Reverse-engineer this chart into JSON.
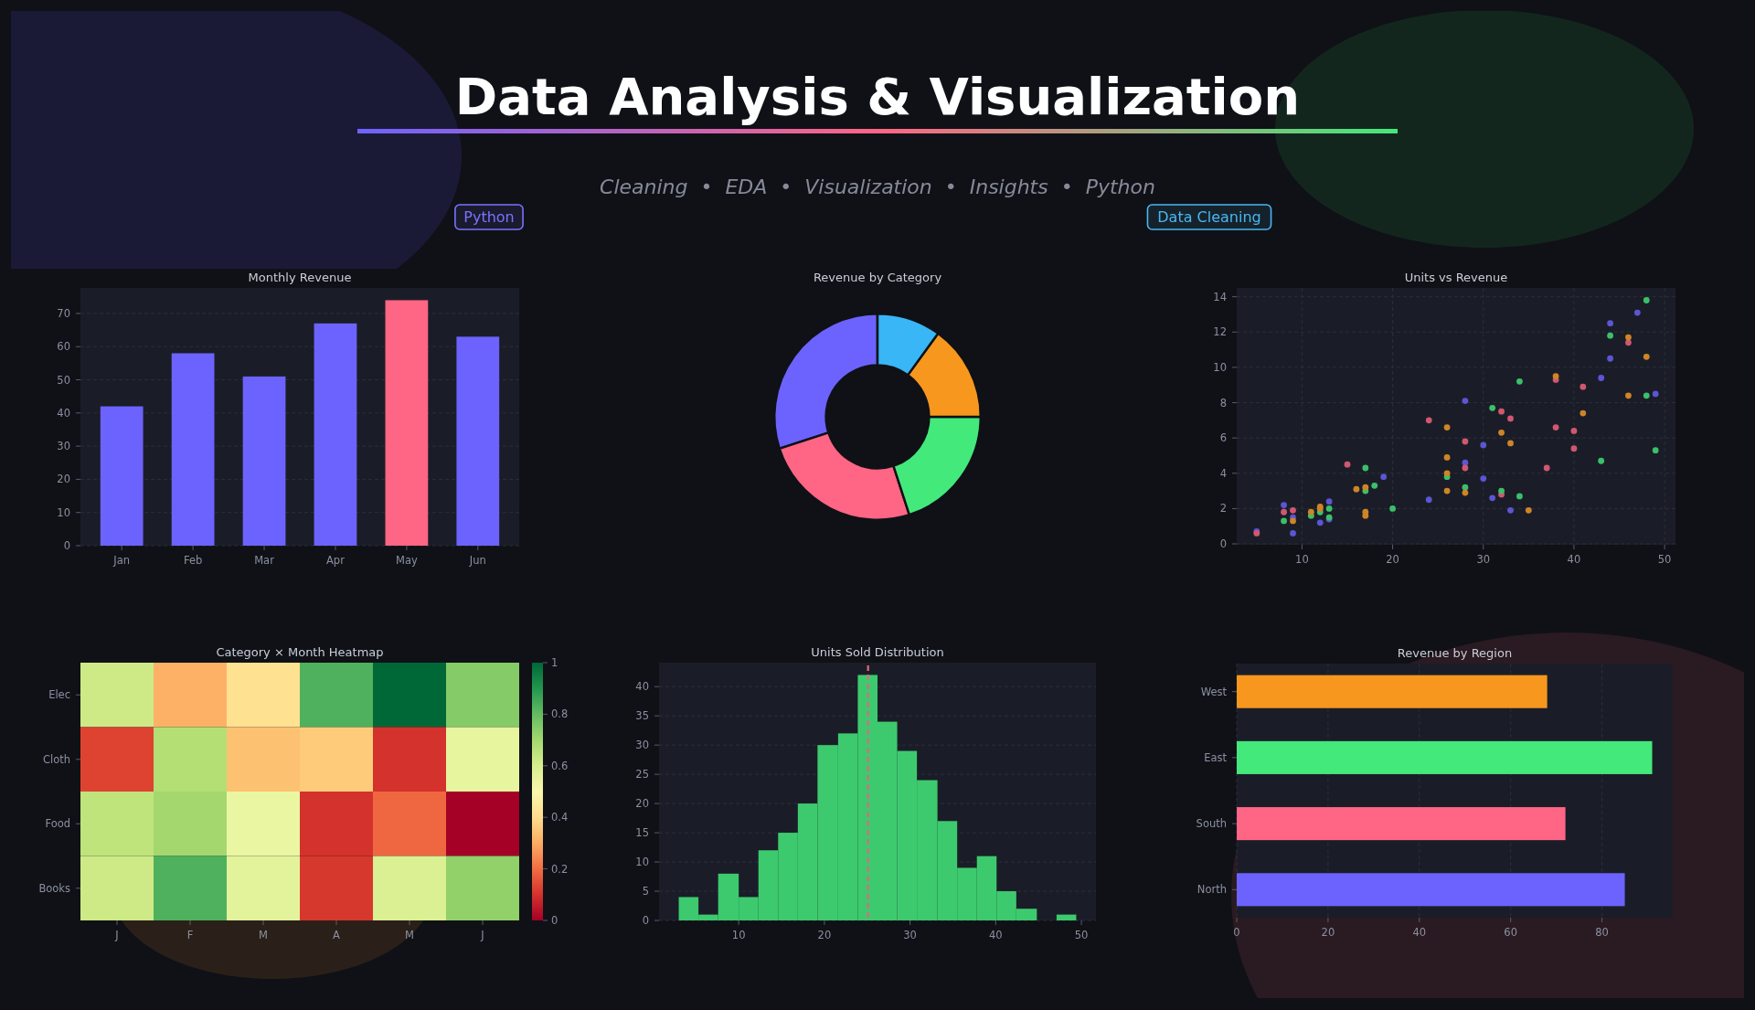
{
  "chart_data": [
    {
      "type": "other",
      "title": "Data Analysis & Visualization",
      "subtitle": "Cleaning  •  EDA  •  Visualization  •  Insights  •  Python",
      "annotations": [
        "Python",
        "Data Cleaning"
      ]
    },
    {
      "type": "bar",
      "title": "Monthly Revenue",
      "categories": [
        "Jan",
        "Feb",
        "Mar",
        "Apr",
        "May",
        "Jun"
      ],
      "values": [
        42,
        58,
        51,
        67,
        74,
        63
      ],
      "colors": [
        "#6c63ff",
        "#6c63ff",
        "#6c63ff",
        "#6c63ff",
        "#ff6584",
        "#6c63ff"
      ],
      "ylim": [
        0,
        77.7
      ],
      "yticks": [
        0,
        10,
        20,
        30,
        40,
        50,
        60,
        70
      ],
      "grid": "y"
    },
    {
      "type": "donut",
      "title": "Revenue by Category",
      "categories": [
        null,
        null,
        null,
        null,
        null
      ],
      "values": [
        30,
        25,
        20,
        15,
        10
      ],
      "colors": [
        "#6c63ff",
        "#ff6584",
        "#43e97b",
        "#f7971e",
        "#38b6f5"
      ]
    },
    {
      "type": "scatter",
      "title": "Units vs Revenue",
      "series": [
        {
          "color": "#5c55d4",
          "x": [
            5,
            8,
            9,
            9,
            12,
            13,
            13,
            19,
            24,
            28,
            28,
            30,
            30,
            31,
            33,
            43,
            44,
            44,
            47,
            49
          ],
          "values": [
            0.7,
            2.2,
            1.5,
            0.6,
            1.2,
            2.4,
            1.4,
            3.8,
            2.5,
            8.1,
            4.6,
            5.6,
            3.7,
            2.6,
            1.9,
            9.4,
            12.5,
            10.5,
            13.1,
            8.5
          ]
        },
        {
          "color": "#d15771",
          "x": [
            5,
            8,
            9,
            15,
            24,
            28,
            28,
            32,
            32,
            33,
            37,
            38,
            38,
            40,
            40,
            41,
            46
          ],
          "values": [
            0.6,
            1.8,
            1.9,
            4.5,
            7.0,
            5.8,
            4.3,
            7.5,
            2.8,
            7.1,
            4.3,
            6.6,
            9.3,
            6.4,
            5.4,
            8.9,
            11.4
          ]
        },
        {
          "color": "#3bc06a",
          "x": [
            8,
            11,
            12,
            13,
            13,
            17,
            17,
            18,
            20,
            26,
            28,
            31,
            32,
            34,
            34,
            43,
            44,
            48,
            48,
            49
          ],
          "values": [
            1.3,
            1.6,
            1.8,
            2.0,
            1.5,
            4.3,
            3.0,
            3.3,
            2.0,
            3.8,
            3.2,
            7.7,
            3.0,
            9.2,
            2.7,
            4.7,
            11.8,
            13.8,
            8.4,
            5.3
          ]
        },
        {
          "color": "#cf8526",
          "x": [
            9,
            11,
            12,
            12,
            16,
            17,
            17,
            17,
            26,
            26,
            26,
            26,
            28,
            32,
            33,
            35,
            38,
            41,
            46,
            46,
            48
          ],
          "values": [
            1.3,
            1.8,
            2.1,
            2.0,
            3.1,
            3.2,
            1.8,
            1.6,
            6.6,
            4.9,
            4.0,
            3.0,
            2.9,
            6.3,
            5.7,
            1.9,
            9.5,
            7.4,
            11.7,
            8.4,
            10.6
          ]
        }
      ],
      "xlim": [
        2.8,
        51.2
      ],
      "xticks": [
        10,
        20,
        30,
        40,
        50
      ],
      "ylim": [
        -0.05,
        14.5
      ],
      "yticks": [
        0,
        2,
        4,
        6,
        8,
        10,
        12,
        14
      ],
      "grid": true,
      "marker": "circle"
    },
    {
      "type": "heatmap",
      "title": "Category × Month Heatmap",
      "categories": [
        "J",
        "F",
        "M",
        "A",
        "M",
        "J"
      ],
      "y_categories": [
        "Elec",
        "Cloth",
        "Food",
        "Books"
      ],
      "cells": [
        [
          0.62,
          0.31,
          0.41,
          0.83,
          1.0,
          0.75
        ],
        [
          0.13,
          0.67,
          0.34,
          0.36,
          0.1,
          0.56
        ],
        [
          0.65,
          0.7,
          0.55,
          0.1,
          0.19,
          0.0
        ],
        [
          0.62,
          0.83,
          0.57,
          0.11,
          0.59,
          0.73
        ]
      ],
      "clim": [
        0,
        1
      ],
      "cticks": [
        0,
        0.2,
        0.4,
        0.6,
        0.8,
        1
      ]
    },
    {
      "type": "histogram",
      "title": "Units Sold Distribution",
      "bins": [
        3.0,
        5.3,
        7.6,
        10.0,
        12.3,
        14.6,
        16.9,
        19.2,
        21.6,
        23.9,
        26.2,
        28.5,
        30.8,
        33.2,
        35.5,
        37.8,
        40.1,
        42.4,
        44.8,
        47.1,
        49.4
      ],
      "values": [
        4,
        1,
        8,
        4,
        12,
        15,
        20,
        30,
        32,
        42,
        34,
        29,
        24,
        17,
        9,
        11,
        5,
        2,
        0,
        1
      ],
      "color": "#3dca6e",
      "xlim": [
        0.7,
        51.7
      ],
      "xticks": [
        10,
        20,
        30,
        40,
        50
      ],
      "ylim": [
        0,
        44.1
      ],
      "yticks": [
        0,
        5,
        10,
        15,
        20,
        25,
        30,
        35,
        40
      ],
      "grid": "y",
      "ref_lines": [
        {
          "axis": "x",
          "value": 25.1,
          "color": "#e0687f",
          "line_style": "dashed"
        }
      ]
    },
    {
      "type": "bar",
      "orientation": "horizontal",
      "title": "Revenue by Region",
      "categories": [
        "West",
        "East",
        "South",
        "North"
      ],
      "values": [
        68,
        91,
        72,
        85
      ],
      "colors": [
        "#f7971e",
        "#43e97b",
        "#ff6584",
        "#6c63ff"
      ],
      "xlim": [
        0,
        95.5
      ],
      "xticks": [
        0,
        20,
        40,
        60,
        80
      ],
      "grid": "x"
    }
  ]
}
